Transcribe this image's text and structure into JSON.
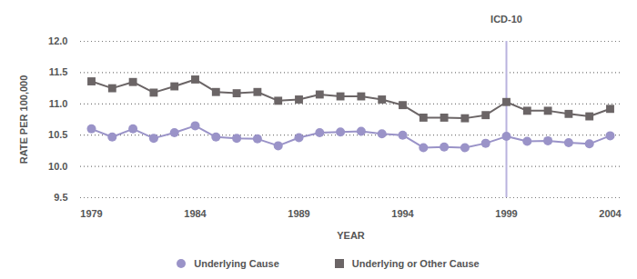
{
  "chart_data": {
    "type": "line",
    "x": [
      1979,
      1980,
      1981,
      1982,
      1983,
      1984,
      1985,
      1986,
      1987,
      1988,
      1989,
      1990,
      1991,
      1992,
      1993,
      1994,
      1995,
      1996,
      1997,
      1998,
      1999,
      2000,
      2001,
      2002,
      2003,
      2004
    ],
    "series": [
      {
        "name": "Underlying Cause",
        "color": "#9a93c8",
        "marker": "circle",
        "values": [
          10.6,
          10.47,
          10.6,
          10.45,
          10.54,
          10.65,
          10.47,
          10.45,
          10.44,
          10.33,
          10.46,
          10.54,
          10.55,
          10.56,
          10.52,
          10.5,
          10.3,
          10.31,
          10.3,
          10.37,
          10.48,
          10.4,
          10.41,
          10.38,
          10.36,
          10.49
        ]
      },
      {
        "name": "Underlying or Other Cause",
        "color": "#6b6566",
        "marker": "square",
        "values": [
          11.36,
          11.25,
          11.35,
          11.18,
          11.28,
          11.39,
          11.19,
          11.17,
          11.19,
          11.05,
          11.07,
          11.15,
          11.12,
          11.12,
          11.07,
          10.98,
          10.78,
          10.78,
          10.77,
          10.82,
          11.03,
          10.89,
          10.89,
          10.84,
          10.8,
          10.92
        ]
      }
    ],
    "xlabel": "YEAR",
    "ylabel": "RATE PER 100,000",
    "xlim": [
      1979,
      2004
    ],
    "xticks": [
      1979,
      1984,
      1989,
      1994,
      1999,
      2004
    ],
    "ylim": [
      9.5,
      12.0
    ],
    "yticks": [
      9.5,
      {
        "value": 10.0,
        "label": "10.0"
      },
      10.5,
      {
        "value": 11.0,
        "label": "11.0"
      },
      11.5,
      {
        "value": 12.0,
        "label": "12.0"
      }
    ],
    "grid": true,
    "legend": "bottom",
    "annotations": [
      {
        "x": 1999,
        "label": "ICD-10",
        "color": "#b9b3de"
      }
    ]
  }
}
